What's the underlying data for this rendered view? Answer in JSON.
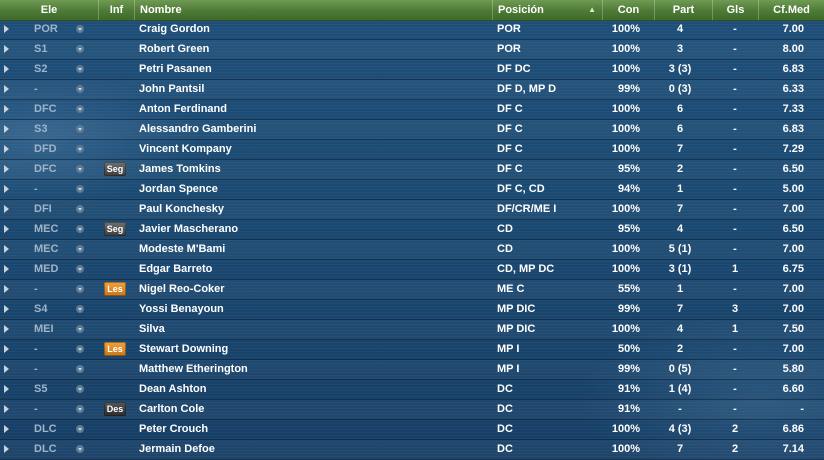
{
  "columns": {
    "ele": "Ele",
    "inf": "Inf",
    "nombre": "Nombre",
    "posicion": "Posición",
    "con": "Con",
    "part": "Part",
    "gls": "Gls",
    "cfmed": "Cf.Med"
  },
  "sort_indicator": "▲",
  "players": [
    {
      "ele": "POR",
      "inf": "",
      "name": "Craig Gordon",
      "pos": "POR",
      "con": "100%",
      "part": "4",
      "gls": "-",
      "cf": "7.00"
    },
    {
      "ele": "S1",
      "inf": "",
      "name": "Robert Green",
      "pos": "POR",
      "con": "100%",
      "part": "3",
      "gls": "-",
      "cf": "8.00"
    },
    {
      "ele": "S2",
      "inf": "",
      "name": "Petri Pasanen",
      "pos": "DF DC",
      "con": "100%",
      "part": "3 (3)",
      "gls": "-",
      "cf": "6.83"
    },
    {
      "ele": "-",
      "inf": "",
      "name": "John Pantsil",
      "pos": "DF D, MP D",
      "con": "99%",
      "part": "0 (3)",
      "gls": "-",
      "cf": "6.33"
    },
    {
      "ele": "DFC",
      "inf": "",
      "name": "Anton Ferdinand",
      "pos": "DF C",
      "con": "100%",
      "part": "6",
      "gls": "-",
      "cf": "7.33"
    },
    {
      "ele": "S3",
      "inf": "",
      "name": "Alessandro Gamberini",
      "pos": "DF C",
      "con": "100%",
      "part": "6",
      "gls": "-",
      "cf": "6.83"
    },
    {
      "ele": "DFD",
      "inf": "",
      "name": "Vincent Kompany",
      "pos": "DF C",
      "con": "100%",
      "part": "7",
      "gls": "-",
      "cf": "7.29"
    },
    {
      "ele": "DFC",
      "inf": "Seg",
      "name": "James Tomkins",
      "pos": "DF C",
      "con": "95%",
      "part": "2",
      "gls": "-",
      "cf": "6.50"
    },
    {
      "ele": "-",
      "inf": "",
      "name": "Jordan Spence",
      "pos": "DF C, CD",
      "con": "94%",
      "part": "1",
      "gls": "-",
      "cf": "5.00"
    },
    {
      "ele": "DFI",
      "inf": "",
      "name": "Paul Konchesky",
      "pos": "DF/CR/ME I",
      "con": "100%",
      "part": "7",
      "gls": "-",
      "cf": "7.00"
    },
    {
      "ele": "MEC",
      "inf": "Seg",
      "name": "Javier Mascherano",
      "pos": "CD",
      "con": "95%",
      "part": "4",
      "gls": "-",
      "cf": "6.50"
    },
    {
      "ele": "MEC",
      "inf": "",
      "name": "Modeste M'Bami",
      "pos": "CD",
      "con": "100%",
      "part": "5 (1)",
      "gls": "-",
      "cf": "7.00"
    },
    {
      "ele": "MED",
      "inf": "",
      "name": "Edgar Barreto",
      "pos": "CD, MP DC",
      "con": "100%",
      "part": "3 (1)",
      "gls": "1",
      "cf": "6.75"
    },
    {
      "ele": "-",
      "inf": "Les",
      "name": "Nigel Reo-Coker",
      "pos": "ME C",
      "con": "55%",
      "part": "1",
      "gls": "-",
      "cf": "7.00"
    },
    {
      "ele": "S4",
      "inf": "",
      "name": "Yossi Benayoun",
      "pos": "MP DIC",
      "con": "99%",
      "part": "7",
      "gls": "3",
      "cf": "7.00"
    },
    {
      "ele": "MEI",
      "inf": "",
      "name": "Silva",
      "pos": "MP DIC",
      "con": "100%",
      "part": "4",
      "gls": "1",
      "cf": "7.50"
    },
    {
      "ele": "-",
      "inf": "Les",
      "name": "Stewart Downing",
      "pos": "MP I",
      "con": "50%",
      "part": "2",
      "gls": "-",
      "cf": "7.00"
    },
    {
      "ele": "-",
      "inf": "",
      "name": "Matthew Etherington",
      "pos": "MP I",
      "con": "99%",
      "part": "0 (5)",
      "gls": "-",
      "cf": "5.80"
    },
    {
      "ele": "S5",
      "inf": "",
      "name": "Dean Ashton",
      "pos": "DC",
      "con": "91%",
      "part": "1 (4)",
      "gls": "-",
      "cf": "6.60"
    },
    {
      "ele": "-",
      "inf": "Des",
      "name": "Carlton Cole",
      "pos": "DC",
      "con": "91%",
      "part": "-",
      "gls": "-",
      "cf": "-"
    },
    {
      "ele": "DLC",
      "inf": "",
      "name": "Peter Crouch",
      "pos": "DC",
      "con": "100%",
      "part": "4 (3)",
      "gls": "2",
      "cf": "6.86"
    },
    {
      "ele": "DLC",
      "inf": "",
      "name": "Jermain Defoe",
      "pos": "DC",
      "con": "100%",
      "part": "7",
      "gls": "2",
      "cf": "7.14"
    }
  ]
}
